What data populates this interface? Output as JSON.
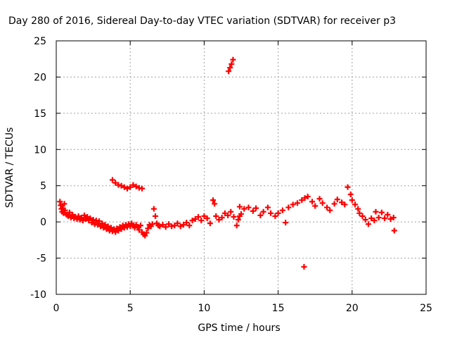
{
  "chart_data": {
    "type": "scatter",
    "title": "Day 280 of 2016, Sidereal Day-to-day VTEC variation (SDTVAR) for receiver p3",
    "xlabel": "GPS time / hours",
    "ylabel": "SDTVAR / TECUs",
    "xlim": [
      0,
      25
    ],
    "ylim": [
      -10,
      25
    ],
    "xticks": [
      0,
      5,
      10,
      15,
      20,
      25
    ],
    "yticks": [
      -10,
      -5,
      0,
      5,
      10,
      15,
      20,
      25
    ],
    "grid": true,
    "marker": "plus",
    "color": "#ff0000",
    "series": [
      {
        "name": "SDTVAR",
        "points": [
          [
            0.25,
            2.8
          ],
          [
            0.3,
            2.3
          ],
          [
            0.35,
            1.8
          ],
          [
            0.4,
            1.4
          ],
          [
            0.45,
            1.9
          ],
          [
            0.5,
            1.2
          ],
          [
            0.55,
            2.5
          ],
          [
            0.6,
            1.6
          ],
          [
            0.7,
            1.0
          ],
          [
            0.8,
            0.8
          ],
          [
            0.9,
            1.3
          ],
          [
            1.0,
            0.6
          ],
          [
            1.1,
            1.0
          ],
          [
            1.2,
            0.5
          ],
          [
            1.3,
            0.7
          ],
          [
            1.4,
            0.4
          ],
          [
            1.5,
            0.8
          ],
          [
            1.6,
            0.3
          ],
          [
            1.7,
            0.6
          ],
          [
            1.8,
            0.2
          ],
          [
            1.9,
            0.9
          ],
          [
            2.0,
            0.4
          ],
          [
            2.1,
            0.7
          ],
          [
            2.2,
            0.2
          ],
          [
            2.3,
            0.5
          ],
          [
            2.4,
            -0.1
          ],
          [
            2.5,
            0.3
          ],
          [
            2.6,
            -0.3
          ],
          [
            2.7,
            0.2
          ],
          [
            2.8,
            -0.4
          ],
          [
            2.9,
            0.1
          ],
          [
            3.0,
            -0.6
          ],
          [
            3.1,
            -0.2
          ],
          [
            3.2,
            -0.8
          ],
          [
            3.3,
            -0.4
          ],
          [
            3.4,
            -1.0
          ],
          [
            3.5,
            -0.6
          ],
          [
            3.6,
            -1.2
          ],
          [
            3.7,
            -0.8
          ],
          [
            3.8,
            -1.3
          ],
          [
            3.9,
            -1.0
          ],
          [
            4.0,
            -1.4
          ],
          [
            4.1,
            -0.9
          ],
          [
            4.2,
            -1.2
          ],
          [
            4.3,
            -0.7
          ],
          [
            4.4,
            -1.0
          ],
          [
            4.5,
            -0.5
          ],
          [
            4.6,
            -0.8
          ],
          [
            4.7,
            -0.4
          ],
          [
            4.8,
            -0.7
          ],
          [
            4.9,
            -0.3
          ],
          [
            5.0,
            -0.6
          ],
          [
            5.1,
            -0.2
          ],
          [
            5.2,
            -0.5
          ],
          [
            5.3,
            -0.8
          ],
          [
            5.4,
            -0.4
          ],
          [
            5.5,
            -0.7
          ],
          [
            5.6,
            -1.1
          ],
          [
            5.7,
            -0.5
          ],
          [
            5.8,
            -1.4
          ],
          [
            5.9,
            -1.7
          ],
          [
            6.0,
            -1.9
          ],
          [
            6.1,
            -1.5
          ],
          [
            6.2,
            -0.9
          ],
          [
            6.3,
            -0.4
          ],
          [
            6.4,
            -0.6
          ],
          [
            6.5,
            -0.3
          ],
          [
            6.6,
            1.8
          ],
          [
            6.7,
            0.8
          ],
          [
            6.8,
            -0.2
          ],
          [
            6.9,
            -0.5
          ],
          [
            7.0,
            -0.6
          ],
          [
            7.2,
            -0.4
          ],
          [
            7.4,
            -0.7
          ],
          [
            7.6,
            -0.3
          ],
          [
            7.8,
            -0.6
          ],
          [
            8.0,
            -0.5
          ],
          [
            8.2,
            -0.2
          ],
          [
            8.4,
            -0.6
          ],
          [
            8.6,
            -0.4
          ],
          [
            8.8,
            -0.1
          ],
          [
            9.0,
            -0.5
          ],
          [
            9.2,
            0.2
          ],
          [
            9.4,
            0.4
          ],
          [
            9.6,
            0.7
          ],
          [
            9.8,
            0.2
          ],
          [
            10.0,
            0.8
          ],
          [
            10.2,
            0.5
          ],
          [
            10.4,
            -0.2
          ],
          [
            10.6,
            3.0
          ],
          [
            10.7,
            2.5
          ],
          [
            10.8,
            0.8
          ],
          [
            11.0,
            0.3
          ],
          [
            11.2,
            0.6
          ],
          [
            11.4,
            1.2
          ],
          [
            11.6,
            0.9
          ],
          [
            11.8,
            1.4
          ],
          [
            12.0,
            0.7
          ],
          [
            12.2,
            -0.5
          ],
          [
            12.3,
            0.3
          ],
          [
            12.4,
            0.8
          ],
          [
            12.5,
            1.1
          ],
          [
            12.4,
            2.1
          ],
          [
            12.7,
            1.8
          ],
          [
            13.0,
            2.0
          ],
          [
            13.3,
            1.5
          ],
          [
            13.5,
            1.9
          ],
          [
            13.8,
            0.9
          ],
          [
            14.0,
            1.4
          ],
          [
            14.3,
            2.0
          ],
          [
            14.5,
            1.2
          ],
          [
            14.8,
            0.8
          ],
          [
            15.0,
            1.2
          ],
          [
            15.3,
            1.6
          ],
          [
            15.5,
            -0.1
          ],
          [
            15.7,
            2.0
          ],
          [
            16.0,
            2.4
          ],
          [
            16.3,
            2.6
          ],
          [
            16.6,
            3.0
          ],
          [
            16.8,
            3.3
          ],
          [
            17.0,
            3.5
          ],
          [
            17.3,
            2.8
          ],
          [
            17.5,
            2.2
          ],
          [
            17.8,
            3.2
          ],
          [
            18.0,
            2.6
          ],
          [
            18.3,
            2.0
          ],
          [
            18.5,
            1.6
          ],
          [
            18.8,
            2.5
          ],
          [
            19.0,
            3.1
          ],
          [
            19.3,
            2.7
          ],
          [
            19.5,
            2.4
          ],
          [
            19.7,
            4.8
          ],
          [
            19.9,
            3.8
          ],
          [
            20.0,
            3.0
          ],
          [
            20.2,
            2.4
          ],
          [
            20.4,
            1.8
          ],
          [
            20.5,
            1.2
          ],
          [
            20.7,
            0.8
          ],
          [
            20.9,
            0.3
          ],
          [
            21.1,
            -0.3
          ],
          [
            21.3,
            0.5
          ],
          [
            21.5,
            0.2
          ],
          [
            21.6,
            1.4
          ],
          [
            21.8,
            0.6
          ],
          [
            22.0,
            1.3
          ],
          [
            22.2,
            0.5
          ],
          [
            22.4,
            1.0
          ],
          [
            22.6,
            0.4
          ],
          [
            22.8,
            0.6
          ],
          [
            22.85,
            -1.2
          ],
          [
            11.65,
            20.8
          ],
          [
            11.75,
            21.3
          ],
          [
            11.85,
            21.8
          ],
          [
            11.95,
            22.4
          ],
          [
            3.8,
            5.8
          ],
          [
            4.0,
            5.4
          ],
          [
            4.2,
            5.1
          ],
          [
            4.4,
            5.0
          ],
          [
            4.6,
            4.8
          ],
          [
            4.8,
            4.6
          ],
          [
            5.0,
            4.8
          ],
          [
            5.2,
            5.1
          ],
          [
            5.4,
            4.9
          ],
          [
            5.6,
            4.7
          ],
          [
            5.8,
            4.6
          ],
          [
            16.75,
            -6.2
          ]
        ]
      }
    ]
  }
}
